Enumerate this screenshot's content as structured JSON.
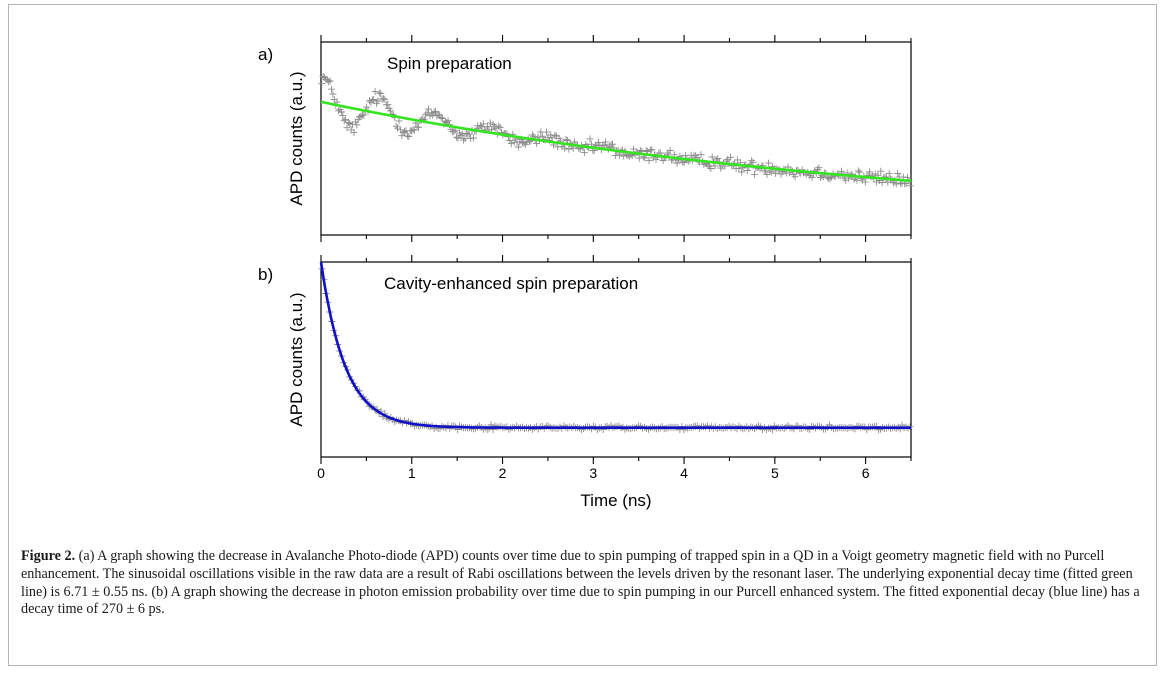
{
  "chart_data": [
    {
      "type": "scatter",
      "panel_label": "a)",
      "annotation": "Spin preparation",
      "xlabel": "Time (ns)",
      "ylabel": "APD counts (a.u.)",
      "xlim": [
        0,
        6.5
      ],
      "ylim": [
        0,
        1
      ],
      "x_ticks": [
        0,
        1,
        2,
        3,
        4,
        5,
        6
      ],
      "show_x_tick_labels": false,
      "grid": false,
      "series": [
        {
          "kind": "points",
          "marker": "+",
          "color": "#8c8c8c",
          "model": {
            "baseline": 0.03,
            "amplitude": 0.66,
            "tau": 6.71,
            "oscillation_amplitude": 0.13,
            "oscillation_period": 0.62,
            "oscillation_damping": 1.4,
            "noise": 0.025,
            "n": 420
          }
        },
        {
          "kind": "fit",
          "color": "#33e51f",
          "model": {
            "baseline": 0.03,
            "amplitude": 0.66,
            "tau": 6.71
          }
        }
      ]
    },
    {
      "type": "scatter",
      "panel_label": "b)",
      "annotation": "Cavity-enhanced spin preparation",
      "xlabel": "Time (ns)",
      "ylabel": "APD counts (a.u.)",
      "xlim": [
        0,
        6.5
      ],
      "ylim": [
        0,
        1
      ],
      "x_ticks": [
        0,
        1,
        2,
        3,
        4,
        5,
        6
      ],
      "x_tick_labels": [
        "0",
        "1",
        "2",
        "3",
        "4",
        "5",
        "6"
      ],
      "show_x_tick_labels": true,
      "grid": false,
      "series": [
        {
          "kind": "points",
          "marker": "+",
          "color": "#8c8c8c",
          "model": {
            "baseline": 0.15,
            "amplitude": 0.85,
            "tau": 0.27,
            "noise": 0.008,
            "n": 300
          }
        },
        {
          "kind": "fit",
          "color": "#1010c8",
          "model": {
            "baseline": 0.15,
            "amplitude": 0.85,
            "tau": 0.27
          }
        }
      ]
    }
  ],
  "caption": {
    "label": "Figure 2.",
    "text": " (a) A graph showing the decrease in Avalanche Photo-diode (APD) counts over time due to spin pumping of trapped spin in a QD in a Voigt geometry magnetic field with no Purcell enhancement. The sinusoidal oscillations visible in the raw data are a result of Rabi oscillations between the levels driven by the resonant laser. The underlying exponential decay time (fitted green line) is 6.71 ± 0.55 ns. (b) A graph showing the decrease in photon emission probability over time due to spin pumping in our Purcell enhanced system. The fitted exponential decay (blue line) has a decay time of 270 ± 6 ps."
  }
}
